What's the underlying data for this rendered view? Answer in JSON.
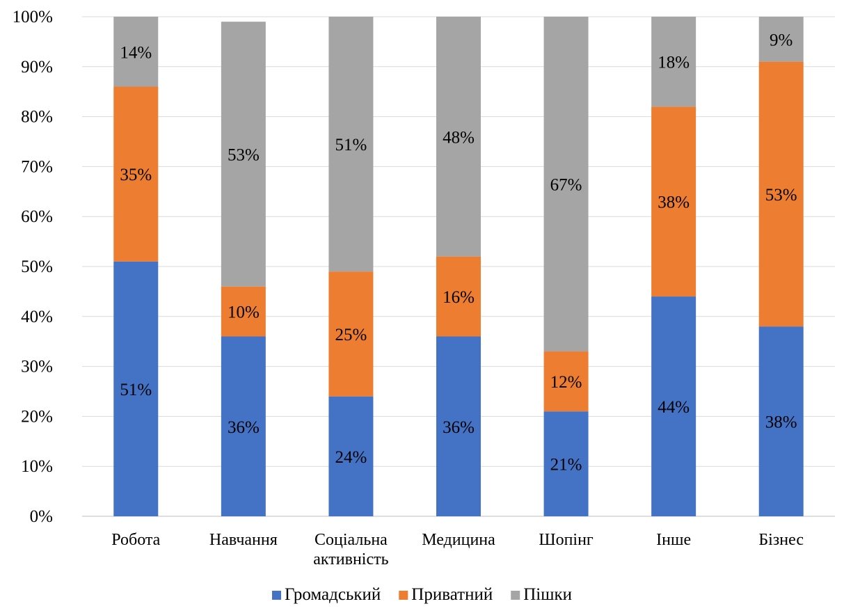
{
  "chart_data": {
    "type": "bar",
    "stacked": true,
    "percent_stacked": true,
    "categories": [
      "Робота",
      "Навчання",
      "Соціальна активність",
      "Медицина",
      "Шопінг",
      "Інше",
      "Бізнес"
    ],
    "category_lines": [
      [
        "Робота"
      ],
      [
        "Навчання"
      ],
      [
        "Соціальна",
        "активність"
      ],
      [
        "Медицина"
      ],
      [
        "Шопінг"
      ],
      [
        "Інше"
      ],
      [
        "Бізнес"
      ]
    ],
    "series": [
      {
        "name": "Громадський",
        "color": "#4472C4",
        "values": [
          51,
          36,
          24,
          36,
          21,
          44,
          38
        ],
        "labels": [
          "51%",
          "36%",
          "24%",
          "36%",
          "21%",
          "44%",
          "38%"
        ]
      },
      {
        "name": "Приватний",
        "color": "#ED7D31",
        "values": [
          35,
          10,
          25,
          16,
          12,
          38,
          53
        ],
        "labels": [
          "35%",
          "10%",
          "25%",
          "16%",
          "12%",
          "38%",
          "53%"
        ]
      },
      {
        "name": "Пішки",
        "color": "#A5A5A5",
        "values": [
          14,
          53,
          51,
          48,
          67,
          18,
          9
        ],
        "labels": [
          "14%",
          "53%",
          "51%",
          "48%",
          "67%",
          "18%",
          "9%"
        ]
      }
    ],
    "y_ticks": [
      "0%",
      "10%",
      "20%",
      "30%",
      "40%",
      "50%",
      "60%",
      "70%",
      "80%",
      "90%",
      "100%"
    ],
    "ylim": [
      0,
      100
    ],
    "grid": true,
    "legend_position": "bottom"
  }
}
